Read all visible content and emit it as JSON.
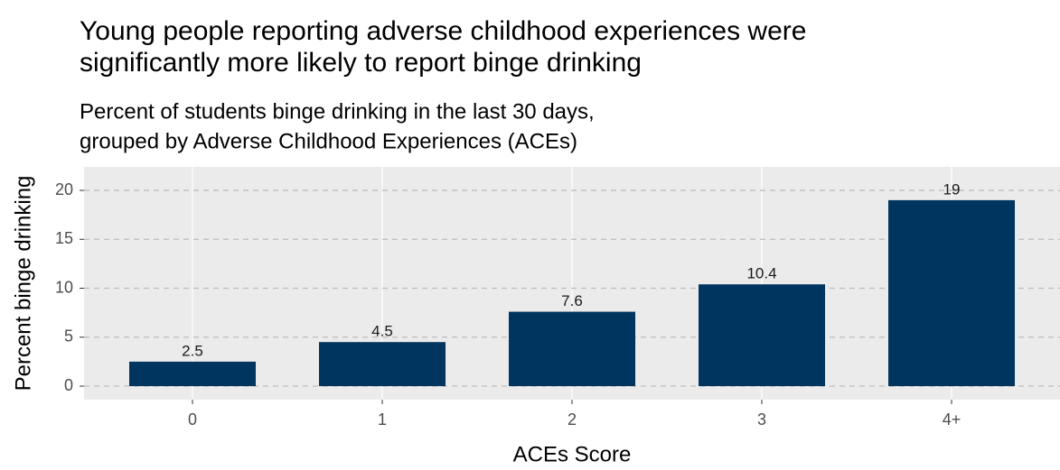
{
  "chart_data": {
    "type": "bar",
    "title": [
      "Young people reporting adverse childhood experiences were",
      "significantly more likely to report binge drinking"
    ],
    "subtitle": [
      "Percent of students binge drinking in the last 30 days,",
      "grouped by Adverse Childhood Experiences (ACEs)"
    ],
    "x_label": "ACEs Score",
    "y_label": "Percent binge drinking",
    "categories": [
      "0",
      "1",
      "2",
      "3",
      "4+"
    ],
    "values": [
      2.5,
      4.5,
      7.6,
      10.4,
      19
    ],
    "color": "#00355f",
    "ylim": [
      -1.38,
      22.4
    ],
    "yticks": [
      0,
      5,
      10,
      15,
      20
    ],
    "grid": true
  }
}
